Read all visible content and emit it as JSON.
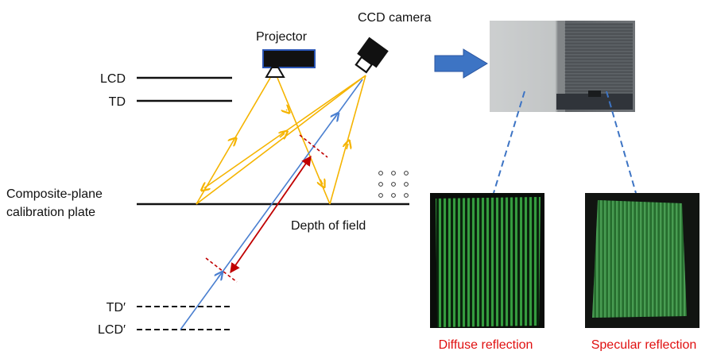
{
  "labels": {
    "projector": "Projector",
    "ccd_camera": "CCD camera",
    "lcd": "LCD",
    "td": "TD",
    "plate_line1": "Composite-plane",
    "plate_line2": "calibration plate",
    "depth_of_field": "Depth of field",
    "td_prime": "TD′",
    "lcd_prime": "LCD′",
    "diffuse": "Diffuse reflection",
    "specular": "Specular reflection"
  },
  "colors": {
    "yellow_ray": "#f5b400",
    "blue_ray": "#4a7fd0",
    "red_ray": "#c00000",
    "arrow_fill": "#3d74c4",
    "caption_red": "#e01010",
    "fringe_green": "#3fa84a"
  },
  "icons": {
    "projector": "projector-icon",
    "camera": "ccd-camera-icon",
    "arrow": "right-arrow-icon"
  }
}
